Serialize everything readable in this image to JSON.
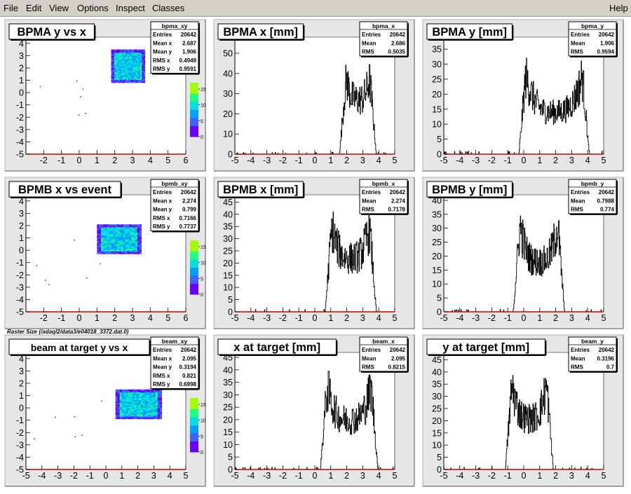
{
  "menu": {
    "items": [
      "File",
      "Edit",
      "View",
      "Options",
      "Inspect",
      "Classes"
    ],
    "help": "Help"
  },
  "colors": {
    "frame": "#e6e6e6",
    "pad": "#ffffff",
    "axis_red": "#cc0000",
    "palette": [
      "#6a00ff",
      "#4060ff",
      "#00a0ff",
      "#00e0e0",
      "#20ff80",
      "#a0ff00"
    ]
  },
  "caption": "Raster Size (/adaql2/data3/e04018_3372.dat.0)",
  "chart_data": [
    {
      "id": "bpma_xy",
      "type": "heatmap",
      "title": "BPMA y vs x",
      "stats": {
        "name": "bpma_xy",
        "rows": [
          [
            "Entries",
            "20642"
          ],
          [
            "Mean x",
            "2.687"
          ],
          [
            "Mean y",
            "1.906"
          ],
          [
            "RMS x",
            "0.4949"
          ],
          [
            "RMS y",
            "0.9591"
          ]
        ]
      },
      "xlim": [
        -3,
        6
      ],
      "ylim": [
        -5,
        4.5
      ],
      "xticks": [
        -2,
        -1,
        0,
        1,
        2,
        3,
        4,
        5,
        6
      ],
      "yticks": [
        -5,
        -4,
        -3,
        -2,
        -1,
        0,
        1,
        2,
        3,
        4
      ],
      "colorbar": {
        "ticks": [
          0,
          5,
          10,
          15
        ]
      },
      "blob": {
        "x": [
          1.8,
          3.7
        ],
        "y": [
          0.8,
          3.5
        ]
      }
    },
    {
      "id": "bpma_x",
      "type": "histogram",
      "title": "BPMA x [mm]",
      "stats": {
        "name": "bpma_x",
        "rows": [
          [
            "Entries",
            "20642"
          ],
          [
            "Mean",
            "2.686"
          ],
          [
            "RMS",
            "0.5035"
          ]
        ]
      },
      "xlim": [
        -5,
        5
      ],
      "ylim": [
        0,
        58
      ],
      "xticks": [
        -5,
        -4,
        -3,
        -2,
        -1,
        0,
        1,
        2,
        3,
        4,
        5
      ],
      "yticks": [
        0,
        10,
        20,
        30,
        40,
        50
      ],
      "profile": {
        "lo": 1.9,
        "hi": 3.5,
        "peak": 42,
        "valley": 27
      }
    },
    {
      "id": "bpma_y",
      "type": "histogram",
      "title": "BPMA y [mm]",
      "stats": {
        "name": "bpma_y",
        "rows": [
          [
            "Entries",
            "20642"
          ],
          [
            "Mean",
            "1.906"
          ],
          [
            "RMS",
            "0.9594"
          ]
        ]
      },
      "xlim": [
        -5,
        5
      ],
      "ylim": [
        0,
        39
      ],
      "xticks": [
        -5,
        -4,
        -3,
        -2,
        -1,
        0,
        1,
        2,
        3,
        4,
        5
      ],
      "yticks": [
        0,
        5,
        10,
        15,
        20,
        25,
        30,
        35
      ],
      "profile": {
        "lo": 0.05,
        "hi": 3.75,
        "peak": 28,
        "valley": 14
      }
    },
    {
      "id": "bpmb_xy",
      "type": "heatmap",
      "title": "BPMB x vs event",
      "stats": {
        "name": "bpmb_xy",
        "rows": [
          [
            "Entries",
            "20642"
          ],
          [
            "Mean x",
            "2.274"
          ],
          [
            "Mean y",
            "0.799"
          ],
          [
            "RMS x",
            "0.7166"
          ],
          [
            "RMS y",
            "0.7737"
          ]
        ]
      },
      "xlim": [
        -3,
        6
      ],
      "ylim": [
        -5,
        4.5
      ],
      "xticks": [
        -2,
        -1,
        0,
        1,
        2,
        3,
        4,
        5,
        6
      ],
      "yticks": [
        -5,
        -4,
        -3,
        -2,
        -1,
        0,
        1,
        2,
        3,
        4
      ],
      "colorbar": {
        "ticks": [
          0,
          5,
          10,
          15
        ]
      },
      "blob": {
        "x": [
          1.0,
          3.5
        ],
        "y": [
          -0.3,
          2.1
        ]
      }
    },
    {
      "id": "bpmb_x",
      "type": "histogram",
      "title": "BPMB x [mm]",
      "stats": {
        "name": "bpmb_x",
        "rows": [
          [
            "Entries",
            "20642"
          ],
          [
            "Mean",
            "2.274"
          ],
          [
            "RMS",
            "0.7178"
          ]
        ]
      },
      "xlim": [
        -5,
        5
      ],
      "ylim": [
        0,
        48
      ],
      "xticks": [
        -5,
        -4,
        -3,
        -2,
        -1,
        0,
        1,
        2,
        3,
        4,
        5
      ],
      "yticks": [
        0,
        5,
        10,
        15,
        20,
        25,
        30,
        35,
        40,
        45
      ],
      "profile": {
        "lo": 1.0,
        "hi": 3.5,
        "peak": 38,
        "valley": 22
      }
    },
    {
      "id": "bpmb_y",
      "type": "histogram",
      "title": "BPMB y [mm]",
      "stats": {
        "name": "bpmb_y",
        "rows": [
          [
            "Entries",
            "20642"
          ],
          [
            "Mean",
            "0.7988"
          ],
          [
            "RMS",
            "0.774"
          ]
        ]
      },
      "xlim": [
        -5,
        5
      ],
      "ylim": [
        0,
        42
      ],
      "xticks": [
        -5,
        -4,
        -3,
        -2,
        -1,
        0,
        1,
        2,
        3,
        4,
        5
      ],
      "yticks": [
        0,
        5,
        10,
        15,
        20,
        25,
        30,
        35,
        40
      ],
      "profile": {
        "lo": -0.3,
        "hi": 2.2,
        "peak": 34,
        "valley": 18
      }
    },
    {
      "id": "beam_xy",
      "type": "heatmap",
      "title": "beam at target y vs x",
      "stats": {
        "name": "beam_xy",
        "rows": [
          [
            "Entries",
            "20642"
          ],
          [
            "Mean x",
            "2.095"
          ],
          [
            "Mean y",
            "0.3194"
          ],
          [
            "RMS x",
            "0.821"
          ],
          [
            "RMS y",
            "0.6998"
          ]
        ]
      },
      "xlim": [
        -5,
        5
      ],
      "ylim": [
        -5,
        4.5
      ],
      "xticks": [
        -5,
        -4,
        -3,
        -2,
        -1,
        0,
        1,
        2,
        3,
        4,
        5
      ],
      "yticks": [
        -5,
        -4,
        -3,
        -2,
        -1,
        0,
        1,
        2,
        3,
        4
      ],
      "colorbar": {
        "ticks": [
          0,
          5,
          10,
          15
        ]
      },
      "blob": {
        "x": [
          0.6,
          3.5
        ],
        "y": [
          -0.9,
          1.5
        ]
      }
    },
    {
      "id": "beam_x",
      "type": "histogram",
      "title": "x at target [mm]",
      "stats": {
        "name": "beam_x",
        "rows": [
          [
            "Entries",
            "20642"
          ],
          [
            "Mean",
            "2.095"
          ],
          [
            "RMS",
            "0.8215"
          ]
        ]
      },
      "xlim": [
        -5,
        5
      ],
      "ylim": [
        0,
        47
      ],
      "xticks": [
        -5,
        -4,
        -3,
        -2,
        -1,
        0,
        1,
        2,
        3,
        4,
        5
      ],
      "yticks": [
        0,
        5,
        10,
        15,
        20,
        25,
        30,
        35,
        40,
        45
      ],
      "profile": {
        "lo": 0.7,
        "hi": 3.6,
        "peak": 36,
        "valley": 20
      }
    },
    {
      "id": "beam_y",
      "type": "histogram",
      "title": "y at target [mm]",
      "stats": {
        "name": "beam_y",
        "rows": [
          [
            "Entries",
            "20642"
          ],
          [
            "Mean",
            "0.3196"
          ],
          [
            "RMS",
            "0.7"
          ]
        ]
      },
      "xlim": [
        -5,
        5
      ],
      "ylim": [
        0,
        48
      ],
      "xticks": [
        -5,
        -4,
        -3,
        -2,
        -1,
        0,
        1,
        2,
        3,
        4,
        5
      ],
      "yticks": [
        0,
        5,
        10,
        15,
        20,
        25,
        30,
        35,
        40,
        45
      ],
      "profile": {
        "lo": -0.8,
        "hi": 1.5,
        "peak": 38,
        "valley": 21
      }
    }
  ]
}
